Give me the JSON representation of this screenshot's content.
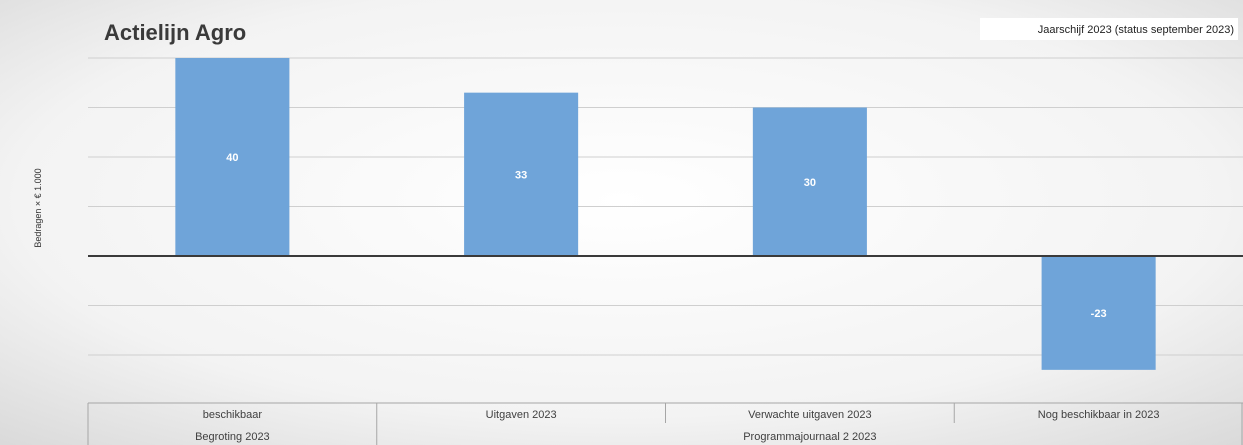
{
  "chart_data": {
    "type": "bar",
    "title": "Actielijn Agro",
    "subtitle": "Jaarschijf 2023 (status september 2023)",
    "ylabel": "Bedragen × € 1.000",
    "xlabel": "",
    "categories": [
      "beschikbaar",
      "Uitgaven 2023",
      "Verwachte uitgaven 2023",
      "Nog beschikbaar in 2023"
    ],
    "category_groups": [
      {
        "label": "Begroting 2023",
        "span": 1
      },
      {
        "label": "Programmajournaal 2 2023",
        "span": 3
      }
    ],
    "values": [
      40,
      33,
      30,
      -23
    ],
    "value_labels": [
      "40",
      "33",
      "30",
      "-23"
    ],
    "ylim": [
      -30,
      40
    ],
    "grid_step": 10,
    "grid": true,
    "legend": "none",
    "y_tick_labels_visible": false,
    "colors": {
      "bar": "#6fa4d9",
      "zero_line": "#3a3a3a",
      "grid": "#cfcfcf",
      "axis_border": "#a6a6a6",
      "title": "#3a3a3a",
      "data_label": "#ffffff"
    }
  }
}
